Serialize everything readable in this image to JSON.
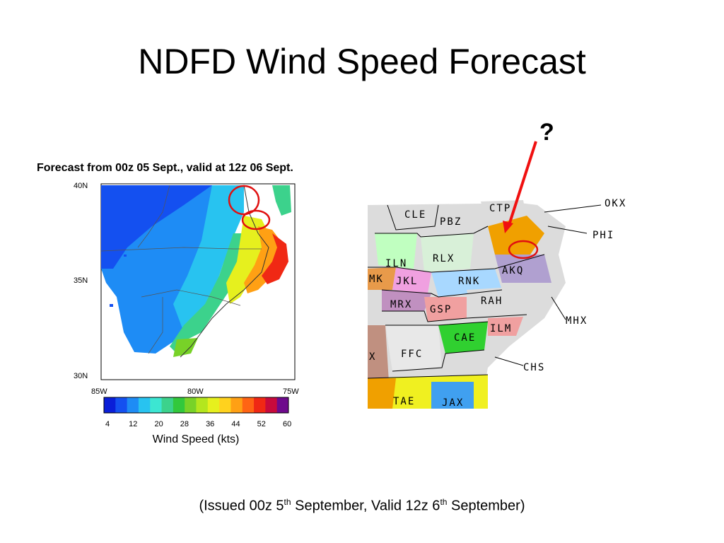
{
  "slide": {
    "title": "NDFD Wind Speed Forecast",
    "caption_parts": [
      "(Issued 00z 5",
      "th",
      " September, Valid 12z 6",
      "th",
      " September)"
    ]
  },
  "forecast_map": {
    "heading": "Forecast from 00z 05 Sept., valid at 12z 06 Sept.",
    "lat_labels": [
      "40N",
      "35N",
      "30N"
    ],
    "lon_labels": [
      "85W",
      "80W",
      "75W"
    ],
    "legend": {
      "title": "Wind Speed (kts)",
      "ticks": [
        "4",
        "12",
        "20",
        "28",
        "36",
        "44",
        "52",
        "60"
      ],
      "colors": [
        "#0a1ed8",
        "#1450f0",
        "#1e8cf5",
        "#28c3f0",
        "#3ce6d2",
        "#3cd28c",
        "#32c83c",
        "#78d228",
        "#b4e61e",
        "#e6f01e",
        "#ffd21e",
        "#ffa014",
        "#ff6414",
        "#f02814",
        "#c80a3c",
        "#6e0a8c"
      ]
    },
    "highlight_circles": 2
  },
  "wfo_map": {
    "labels": [
      "CLE",
      "PBZ",
      "CTP",
      "ILN",
      "RLX",
      "AKQ",
      "MK",
      "JKL",
      "RNK",
      "MRX",
      "GSP",
      "RAH",
      "ILM",
      "CAE",
      "FFC",
      "TAE",
      "JAX",
      "X"
    ],
    "outside_labels": [
      "OKX",
      "PHI",
      "MHX",
      "CHS"
    ],
    "highlight_circles": 1
  },
  "annotation": {
    "mark": "?"
  }
}
